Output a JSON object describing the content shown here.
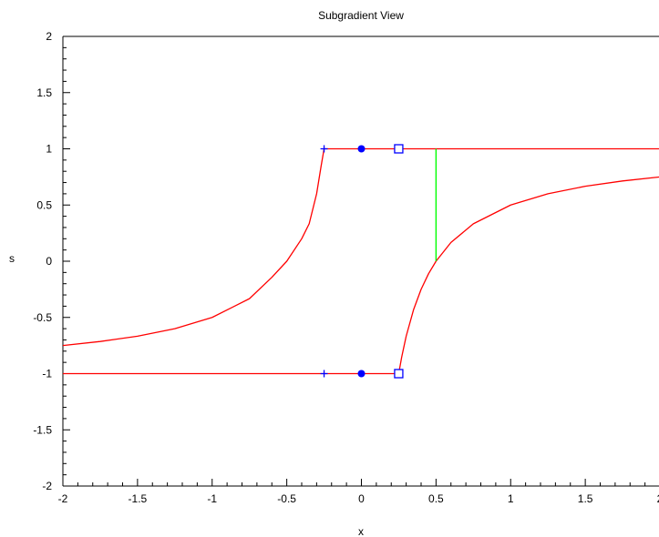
{
  "chart_data": {
    "type": "line",
    "title": "Subgradient View",
    "xlabel": "x",
    "ylabel": "s",
    "xlim": [
      -2,
      2
    ],
    "ylim": [
      -2,
      2
    ],
    "xticks": [
      "-2",
      "-1.5",
      "-1",
      "-0.5",
      "0",
      "0.5",
      "1",
      "1.5",
      "2"
    ],
    "yticks": [
      "-2",
      "-1.5",
      "-1",
      "-0.5",
      "0",
      "0.5",
      "1",
      "1.5",
      "2"
    ],
    "grid": false,
    "colors": {
      "curve": "#ff0000",
      "marker": "#0000ff",
      "segment": "#00ff00"
    },
    "series": [
      {
        "style": "red-line",
        "x": [
          -2,
          -1.75,
          -1.5,
          -1.25,
          -1,
          -0.75,
          -0.6,
          -0.5,
          -0.4,
          -0.35,
          -0.3,
          -0.27,
          -0.25
        ],
        "y": [
          -0.75,
          -0.714,
          -0.667,
          -0.6,
          -0.5,
          -0.333,
          -0.143,
          0,
          0.2,
          0.333,
          0.6,
          0.846,
          1
        ]
      },
      {
        "style": "red-line",
        "x": [
          -0.25,
          2
        ],
        "y": [
          1,
          1
        ]
      },
      {
        "style": "red-line",
        "x": [
          -2,
          0.25
        ],
        "y": [
          -1,
          -1
        ]
      },
      {
        "style": "red-line",
        "x": [
          0.25,
          0.27,
          0.3,
          0.35,
          0.4,
          0.45,
          0.5,
          0.6,
          0.75,
          1,
          1.25,
          1.5,
          1.75,
          2
        ],
        "y": [
          -1,
          -0.852,
          -0.667,
          -0.429,
          -0.25,
          -0.111,
          0,
          0.167,
          0.333,
          0.5,
          0.6,
          0.667,
          0.714,
          0.75
        ]
      },
      {
        "style": "green-segment",
        "x": [
          0.5,
          0.5
        ],
        "y": [
          0,
          1
        ]
      }
    ],
    "markers": [
      {
        "shape": "plus",
        "x": -0.25,
        "y": 1
      },
      {
        "shape": "plus",
        "x": -0.25,
        "y": -1
      },
      {
        "shape": "dot",
        "x": 0,
        "y": 1
      },
      {
        "shape": "dot",
        "x": 0,
        "y": -1
      },
      {
        "shape": "square",
        "x": 0.25,
        "y": 1
      },
      {
        "shape": "square",
        "x": 0.25,
        "y": -1
      }
    ]
  }
}
